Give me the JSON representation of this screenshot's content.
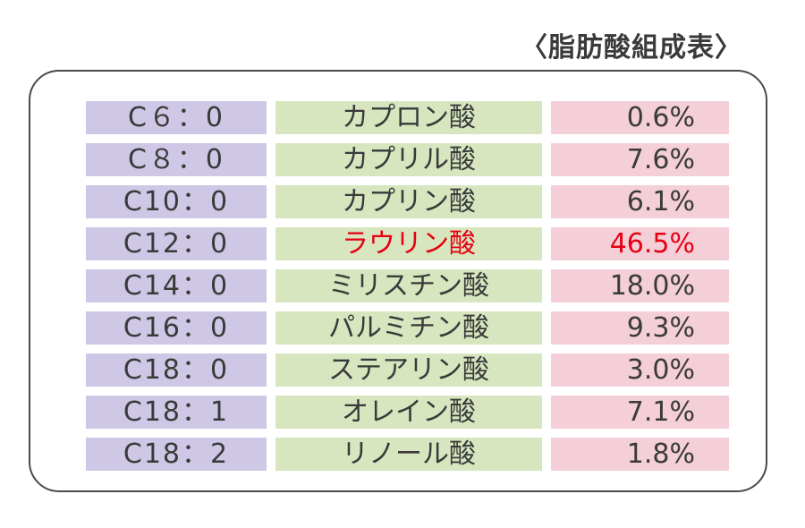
{
  "title": "〈脂肪酸組成表〉",
  "chart_data": {
    "type": "table",
    "title": "〈脂肪酸組成表〉",
    "columns": [
      "code",
      "name",
      "percent"
    ],
    "highlight_color": "#e60012",
    "colors": {
      "code_column": "#cfc7e6",
      "name_column": "#d7e6bf",
      "percent_column": "#f4cfd8"
    },
    "rows": [
      {
        "code": "C６：0",
        "name": "カプロン酸",
        "percent": "0.6%",
        "highlight": false
      },
      {
        "code": "C８：0",
        "name": "カプリル酸",
        "percent": "7.6%",
        "highlight": false
      },
      {
        "code": "C10：0",
        "name": "カプリン酸",
        "percent": "6.1%",
        "highlight": false
      },
      {
        "code": "C12：0",
        "name": "ラウリン酸",
        "percent": "46.5%",
        "highlight": true
      },
      {
        "code": "C14：0",
        "name": "ミリスチン酸",
        "percent": "18.0%",
        "highlight": false
      },
      {
        "code": "C16：0",
        "name": "パルミチン酸",
        "percent": "9.3%",
        "highlight": false
      },
      {
        "code": "C18：0",
        "name": "ステアリン酸",
        "percent": "3.0%",
        "highlight": false
      },
      {
        "code": "C18：1",
        "name": "オレイン酸",
        "percent": "7.1%",
        "highlight": false
      },
      {
        "code": "C18：2",
        "name": "リノール酸",
        "percent": "1.8%",
        "highlight": false
      }
    ]
  }
}
